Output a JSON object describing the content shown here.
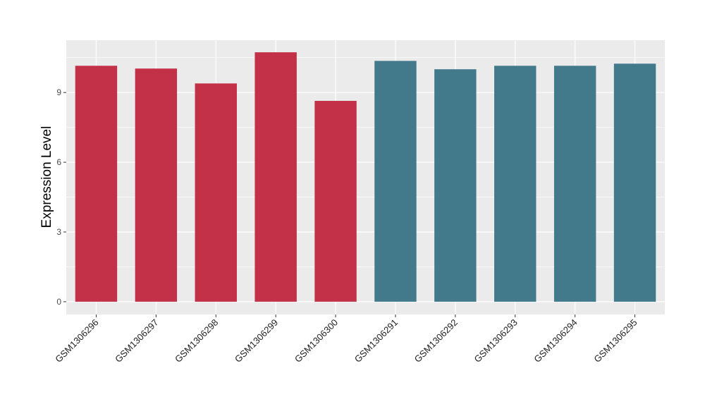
{
  "chart_data": {
    "type": "bar",
    "title": "",
    "xlabel": "",
    "ylabel": "Expression Level",
    "ylim": [
      -0.55,
      11.25
    ],
    "yticks": [
      0,
      3,
      6,
      9
    ],
    "grid": true,
    "legend": "none",
    "categories": [
      "GSM1306296",
      "GSM1306297",
      "GSM1306298",
      "GSM1306299",
      "GSM1306300",
      "GSM1306291",
      "GSM1306292",
      "GSM1306293",
      "GSM1306294",
      "GSM1306295"
    ],
    "values": [
      10.15,
      10.03,
      9.39,
      10.73,
      8.64,
      10.36,
      10.0,
      10.15,
      10.15,
      10.24
    ],
    "bar_colors": [
      "#C33149",
      "#C33149",
      "#C33149",
      "#C33149",
      "#C33149",
      "#427A8B",
      "#427A8B",
      "#427A8B",
      "#427A8B",
      "#427A8B"
    ],
    "panel_background": "#EBEBEB"
  }
}
